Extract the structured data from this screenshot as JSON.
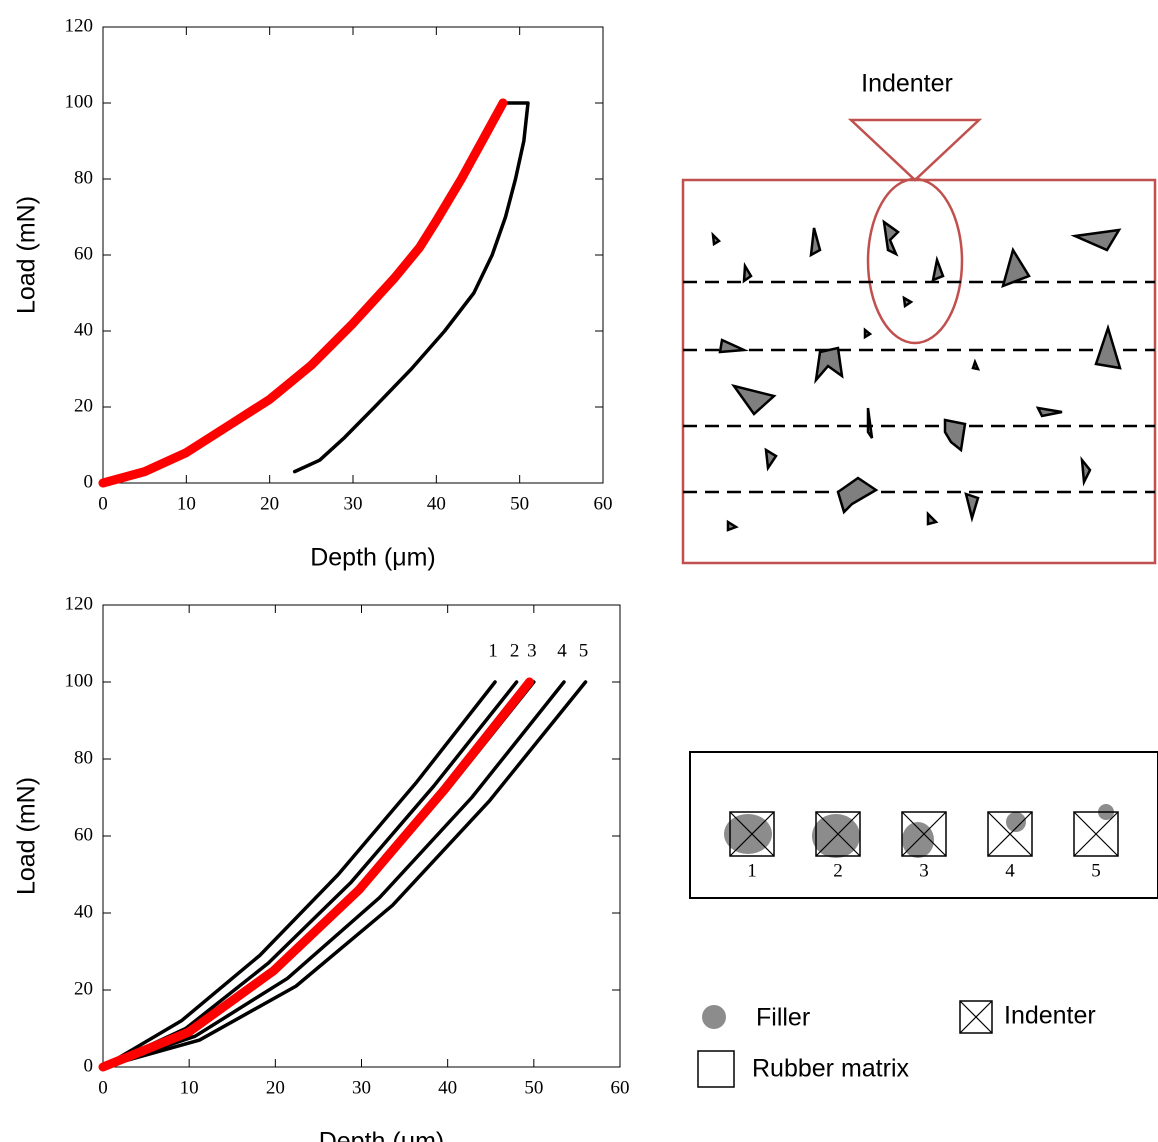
{
  "chart_data": [
    {
      "type": "line",
      "xlabel": "Depth (μm)",
      "ylabel": "Load (mN)",
      "xlim": [
        0,
        60
      ],
      "ylim": [
        0,
        120
      ],
      "xticks": [
        0,
        10,
        20,
        30,
        40,
        50,
        60
      ],
      "yticks": [
        0,
        20,
        40,
        60,
        80,
        100,
        120
      ],
      "series": [
        {
          "color": "#000000",
          "x": [
            0,
            5,
            10,
            15,
            20,
            25,
            30,
            35,
            38,
            40,
            43,
            46,
            48,
            51,
            50.5,
            49.5,
            48.3,
            46.7,
            44.5,
            41,
            37,
            32.6,
            29,
            26,
            23
          ],
          "values": [
            0,
            3,
            8,
            15,
            22,
            31,
            42,
            54,
            62,
            69,
            80,
            92,
            100,
            100,
            90,
            80,
            70,
            60,
            50,
            40,
            30,
            20,
            12,
            6,
            3
          ]
        },
        {
          "color": "#ff0000",
          "x": [
            0,
            5,
            10,
            15,
            20,
            25,
            30,
            35,
            38,
            40,
            43,
            46,
            48
          ],
          "values": [
            0,
            3,
            8,
            15,
            22,
            31,
            42,
            54,
            62,
            69,
            80,
            92,
            100
          ]
        }
      ]
    },
    {
      "type": "line",
      "xlabel": "Depth (μm)",
      "ylabel": "Load (mN)",
      "xlim": [
        0,
        60
      ],
      "ylim": [
        0,
        120
      ],
      "xticks": [
        0,
        10,
        20,
        30,
        40,
        50,
        60
      ],
      "yticks": [
        0,
        20,
        40,
        60,
        80,
        100,
        120
      ],
      "series": [
        {
          "name": "1",
          "color": "#000000",
          "x": [
            0,
            9.1,
            18.2,
            27.3,
            36.4,
            45.5
          ],
          "values": [
            0,
            12,
            29,
            50,
            74,
            100
          ]
        },
        {
          "name": "2",
          "color": "#000000",
          "x": [
            0,
            9.6,
            19.2,
            28.8,
            38.4,
            48
          ],
          "values": [
            0,
            10,
            27,
            48,
            73,
            100
          ]
        },
        {
          "name": "3",
          "color": "#000000",
          "x": [
            0,
            10,
            20,
            30,
            40,
            50
          ],
          "values": [
            0,
            9,
            25,
            46,
            72,
            100
          ]
        },
        {
          "name": "4",
          "color": "#000000",
          "x": [
            0,
            10.7,
            21.4,
            32.1,
            42.8,
            53.5
          ],
          "values": [
            0,
            8,
            23,
            44,
            70,
            100
          ]
        },
        {
          "name": "5",
          "color": "#000000",
          "x": [
            0,
            11.2,
            22.4,
            33.6,
            44.8,
            56
          ],
          "values": [
            0,
            7,
            21,
            42,
            69,
            100
          ]
        },
        {
          "color": "#ff0000",
          "x": [
            0,
            9.9,
            19.8,
            29.7,
            39.6,
            49.5
          ],
          "values": [
            0,
            9,
            25,
            46,
            72,
            100
          ]
        }
      ]
    }
  ],
  "diagram": {
    "indenter": "Indenter",
    "positions": [
      "1",
      "2",
      "3",
      "4",
      "5"
    ],
    "legend": [
      "Filler",
      "Indenter",
      "Rubber matrix"
    ]
  }
}
